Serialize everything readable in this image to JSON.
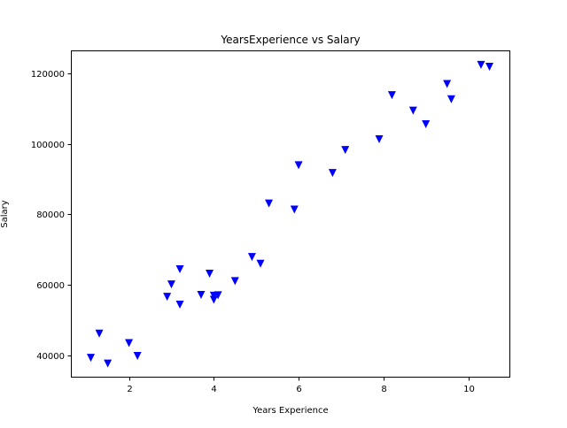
{
  "chart_data": {
    "type": "scatter",
    "title": "YearsExperience vs Salary",
    "xlabel": "Years Experience",
    "ylabel": "Salary",
    "xlim": [
      0.63,
      10.97
    ],
    "ylim": [
      34000,
      126500
    ],
    "xticks": [
      2,
      4,
      6,
      8,
      10
    ],
    "yticks": [
      40000,
      60000,
      80000,
      100000,
      120000
    ],
    "grid": false,
    "marker": "triangle-down",
    "color": "#0000ff",
    "points": [
      {
        "x": 1.1,
        "y": 39343
      },
      {
        "x": 1.3,
        "y": 46205
      },
      {
        "x": 1.5,
        "y": 37731
      },
      {
        "x": 2.0,
        "y": 43525
      },
      {
        "x": 2.2,
        "y": 39891
      },
      {
        "x": 2.9,
        "y": 56642
      },
      {
        "x": 3.0,
        "y": 60150
      },
      {
        "x": 3.2,
        "y": 54445
      },
      {
        "x": 3.2,
        "y": 64445
      },
      {
        "x": 3.7,
        "y": 57189
      },
      {
        "x": 3.9,
        "y": 63218
      },
      {
        "x": 4.0,
        "y": 55794
      },
      {
        "x": 4.0,
        "y": 56957
      },
      {
        "x": 4.1,
        "y": 57081
      },
      {
        "x": 4.5,
        "y": 61111
      },
      {
        "x": 4.9,
        "y": 67938
      },
      {
        "x": 5.1,
        "y": 66029
      },
      {
        "x": 5.3,
        "y": 83088
      },
      {
        "x": 5.9,
        "y": 81363
      },
      {
        "x": 6.0,
        "y": 93940
      },
      {
        "x": 6.8,
        "y": 91738
      },
      {
        "x": 7.1,
        "y": 98273
      },
      {
        "x": 7.9,
        "y": 101302
      },
      {
        "x": 8.2,
        "y": 113812
      },
      {
        "x": 8.7,
        "y": 109431
      },
      {
        "x": 9.0,
        "y": 105582
      },
      {
        "x": 9.5,
        "y": 116969
      },
      {
        "x": 9.6,
        "y": 112635
      },
      {
        "x": 10.3,
        "y": 122391
      },
      {
        "x": 10.5,
        "y": 121872
      }
    ]
  }
}
